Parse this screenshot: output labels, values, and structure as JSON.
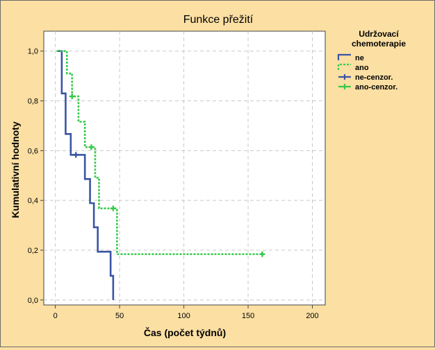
{
  "chart_data": {
    "type": "line",
    "title": "Funkce přežití",
    "xlabel": "Čas (počet týdnů)",
    "ylabel": "Kumulativní hodnoty",
    "xlim": [
      -9,
      210
    ],
    "ylim": [
      -0.02,
      1.08
    ],
    "xticks": [
      0,
      50,
      100,
      150,
      200
    ],
    "xtick_labels": [
      "0",
      "50",
      "100",
      "150",
      "200"
    ],
    "yticks": [
      0,
      0.2,
      0.4,
      0.6,
      0.8,
      1.0
    ],
    "ytick_labels": [
      "0,0",
      "0,2",
      "0,4",
      "0,6",
      "0,8",
      "1,0"
    ],
    "grid": true,
    "legend": {
      "title": "Udržovací chemoterapie",
      "placement": "right",
      "entries": [
        "ne",
        "ano",
        "ne-cenzor.",
        "ano-cenzor."
      ]
    },
    "series": [
      {
        "name": "ne",
        "color": "#3a55a5",
        "style": "solid",
        "x": [
          1,
          5,
          5,
          8,
          8,
          12,
          12,
          23,
          23,
          27,
          27,
          30,
          30,
          33,
          33,
          43,
          43,
          45,
          45
        ],
        "y": [
          1.0,
          1.0,
          0.83,
          0.83,
          0.667,
          0.667,
          0.583,
          0.583,
          0.486,
          0.486,
          0.389,
          0.389,
          0.292,
          0.292,
          0.194,
          0.194,
          0.097,
          0.097,
          0.0
        ]
      },
      {
        "name": "ano",
        "color": "#36c94a",
        "style": "dashed",
        "x": [
          1,
          9,
          9,
          13,
          13,
          18,
          18,
          23,
          23,
          31,
          31,
          34,
          34,
          48,
          48,
          161
        ],
        "y": [
          1.0,
          1.0,
          0.91,
          0.91,
          0.818,
          0.818,
          0.716,
          0.716,
          0.614,
          0.614,
          0.491,
          0.491,
          0.368,
          0.368,
          0.184,
          0.184
        ]
      }
    ],
    "censored": [
      {
        "name": "ne-cenzor.",
        "color": "#3a55a5",
        "x": [
          16
        ],
        "y": [
          0.583
        ]
      },
      {
        "name": "ano-cenzor.",
        "color": "#36c94a",
        "x": [
          13,
          28,
          45,
          161
        ],
        "y": [
          0.818,
          0.614,
          0.368,
          0.184
        ]
      }
    ]
  }
}
